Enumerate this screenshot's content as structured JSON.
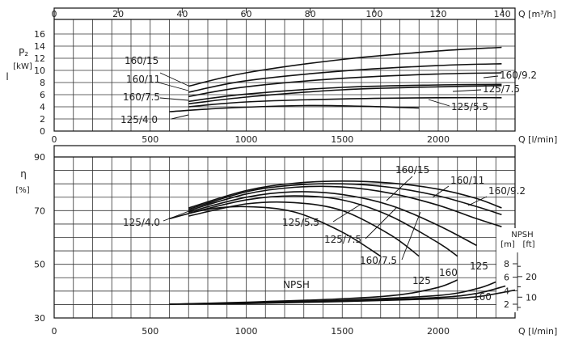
{
  "chart_data": {
    "type": "line",
    "x_axis": {
      "label": "Q [l/min]",
      "min": 0,
      "max": 2400,
      "ticks": [
        0,
        500,
        1000,
        1500,
        2000
      ],
      "top_axis": {
        "label": "Q [m³/h]",
        "min": 0,
        "max": 144,
        "ticks": [
          0,
          20,
          40,
          60,
          80,
          100,
          120,
          140
        ]
      }
    },
    "panels": [
      {
        "id": "power",
        "ylabel": "P₂",
        "yunit": "[kW]",
        "extra_label": "l",
        "ylim": [
          0,
          16
        ],
        "yticks": [
          0,
          2,
          4,
          6,
          8,
          10,
          12,
          14,
          16
        ],
        "grid": true,
        "series": [
          {
            "name": "160/15",
            "x": [
              700,
              1000,
              1500,
              2000,
              2330
            ],
            "y": [
              7.4,
              9.6,
              11.8,
              13.2,
              13.8
            ]
          },
          {
            "name": "160/11",
            "x": [
              700,
              1000,
              1500,
              2000,
              2330
            ],
            "y": [
              6.4,
              8.3,
              9.9,
              10.8,
              11.1
            ]
          },
          {
            "name": "160/9.2",
            "x": [
              700,
              1000,
              1500,
              2000,
              2330
            ],
            "y": [
              5.7,
              7.3,
              8.7,
              9.4,
              9.6
            ]
          },
          {
            "name": "125/7.5",
            "x": [
              700,
              1000,
              1500,
              2000,
              2330
            ],
            "y": [
              4.9,
              6.1,
              7.2,
              7.6,
              7.7
            ]
          },
          {
            "name": "160/7.5",
            "x": [
              700,
              1000,
              1500,
              2000,
              2330
            ],
            "y": [
              4.5,
              5.6,
              6.8,
              7.3,
              7.5
            ]
          },
          {
            "name": "125/5.5",
            "x": [
              700,
              1000,
              1500,
              2000,
              2330
            ],
            "y": [
              4.0,
              4.8,
              5.3,
              5.5,
              5.5
            ]
          },
          {
            "name": "125/4.0",
            "x": [
              600,
              900,
              1300,
              1600,
              1900
            ],
            "y": [
              3.2,
              3.8,
              4.2,
              4.1,
              3.8
            ]
          }
        ]
      },
      {
        "id": "efficiency",
        "ylabel": "η",
        "yunit": "[%]",
        "ylim": [
          30,
          90
        ],
        "yticks": [
          30,
          50,
          70,
          90
        ],
        "grid": true,
        "series": [
          {
            "name": "160/15",
            "x": [
              700,
              1000,
              1250,
              1500,
              1750,
              2000,
              2200,
              2330
            ],
            "y": [
              71,
              77.5,
              80.2,
              81,
              80.3,
              78,
              74.5,
              71
            ]
          },
          {
            "name": "160/11",
            "x": [
              700,
              1000,
              1250,
              1500,
              1750,
              2000,
              2200,
              2330
            ],
            "y": [
              70.5,
              77,
              79.5,
              80,
              78.7,
              75.5,
              71.5,
              68.5
            ]
          },
          {
            "name": "160/9.2",
            "x": [
              700,
              1000,
              1250,
              1500,
              1750,
              2000,
              2200,
              2330
            ],
            "y": [
              70,
              76.2,
              78.7,
              78.8,
              76.5,
              72,
              67,
              64
            ]
          },
          {
            "name": "160/7.5",
            "x": [
              700,
              1000,
              1250,
              1500,
              1750,
              2000,
              2200
            ],
            "y": [
              69.5,
              75,
              77,
              76,
              72,
              64.5,
              57
            ]
          },
          {
            "name": "125/7.5",
            "x": [
              700,
              1000,
              1250,
              1500,
              1750,
              2000,
              2100
            ],
            "y": [
              69,
              74,
              75.5,
              74,
              68,
              58,
              53
            ]
          },
          {
            "name": "125/5.5",
            "x": [
              700,
              1000,
              1250,
              1500,
              1750,
              1900
            ],
            "y": [
              68,
              72.5,
              73,
              70,
              61,
              53
            ]
          },
          {
            "name": "125/4.0",
            "x": [
              600,
              800,
              1000,
              1250,
              1500,
              1700
            ],
            "y": [
              67,
              70.5,
              71.5,
              69.5,
              62,
              53
            ]
          }
        ]
      }
    ],
    "npsh": {
      "label": "NPSH",
      "scale_title": "NPSH",
      "scale_units": [
        "[m]",
        "[ft]"
      ],
      "m_ticks": [
        2,
        4,
        6,
        8
      ],
      "ft_ticks": [
        10,
        20
      ],
      "series": [
        {
          "name": "125",
          "x": [
            600,
            1000,
            1500,
            1800,
            2000,
            2100
          ],
          "npsh_m": [
            2.0,
            2.3,
            2.8,
            3.4,
            4.5,
            5.6
          ]
        },
        {
          "name": "160",
          "x": [
            600,
            1000,
            1500,
            2000,
            2200,
            2300
          ],
          "npsh_m": [
            2.0,
            2.2,
            2.6,
            3.3,
            4.3,
            5.3
          ]
        },
        {
          "name": "125",
          "x": [
            600,
            1000,
            1500,
            2000,
            2200,
            2350
          ],
          "npsh_m": [
            2.0,
            2.2,
            2.5,
            3.0,
            3.6,
            4.7
          ]
        },
        {
          "name": "160",
          "x": [
            600,
            1000,
            1500,
            2000,
            2200,
            2400
          ],
          "npsh_m": [
            2.0,
            2.1,
            2.4,
            2.8,
            3.1,
            4.1
          ]
        }
      ]
    }
  }
}
